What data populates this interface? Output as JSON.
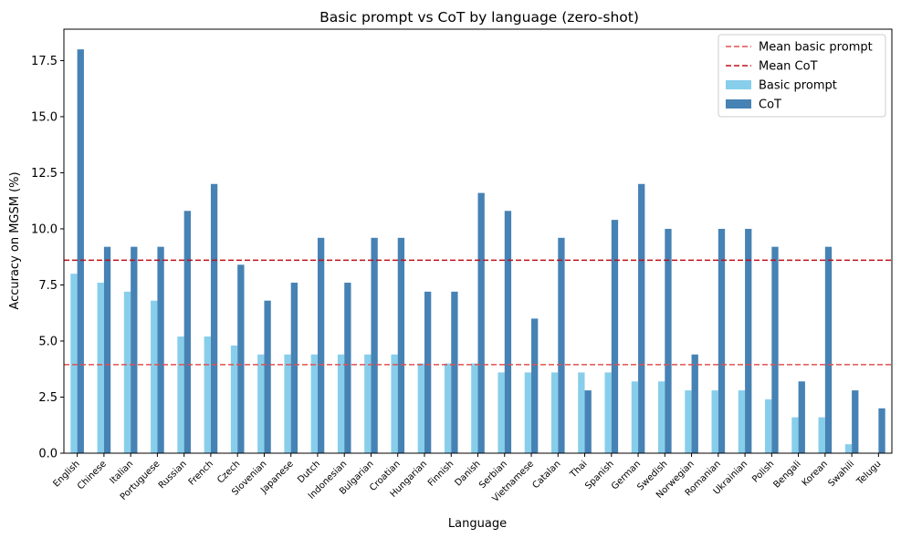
{
  "chart_data": {
    "type": "bar",
    "title": "Basic prompt vs CoT by language (zero-shot)",
    "xlabel": "Language",
    "ylabel": "Accuracy on MGSM (%)",
    "ylim": [
      0,
      18.9
    ],
    "yticks": [
      "0.0",
      "2.5",
      "5.0",
      "7.5",
      "10.0",
      "12.5",
      "15.0",
      "17.5"
    ],
    "ytick_values": [
      0,
      2.5,
      5.0,
      7.5,
      10.0,
      12.5,
      15.0,
      17.5
    ],
    "grid": false,
    "legend_position": "top-right",
    "categories": [
      "English",
      "Chinese",
      "Italian",
      "Portuguese",
      "Russian",
      "French",
      "Czech",
      "Slovenian",
      "Japanese",
      "Dutch",
      "Indonesian",
      "Bulgarian",
      "Croatian",
      "Hungarian",
      "Finnish",
      "Danish",
      "Serbian",
      "Vietnamese",
      "Catalan",
      "Thai",
      "Spanish",
      "German",
      "Swedish",
      "Norwegian",
      "Romanian",
      "Ukrainian",
      "Polish",
      "Bengali",
      "Korean",
      "Swahili",
      "Telugu"
    ],
    "series": [
      {
        "name": "Basic prompt",
        "color": "#87ceeb",
        "values": [
          8.0,
          7.6,
          7.2,
          6.8,
          5.2,
          5.2,
          4.8,
          4.4,
          4.4,
          4.4,
          4.4,
          4.4,
          4.4,
          4.0,
          4.0,
          4.0,
          3.6,
          3.6,
          3.6,
          3.6,
          3.6,
          3.2,
          3.2,
          2.8,
          2.8,
          2.8,
          2.4,
          1.6,
          1.6,
          0.4,
          0.0
        ]
      },
      {
        "name": "CoT",
        "color": "#4682b4",
        "values": [
          18.0,
          9.2,
          9.2,
          9.2,
          10.8,
          12.0,
          8.4,
          6.8,
          7.6,
          9.6,
          7.6,
          9.6,
          9.6,
          7.2,
          7.2,
          11.6,
          10.8,
          6.0,
          9.6,
          2.8,
          10.4,
          12.0,
          10.0,
          4.4,
          10.0,
          10.0,
          9.2,
          3.2,
          9.2,
          2.8,
          2.0
        ]
      }
    ],
    "reference_lines": [
      {
        "name": "Mean basic prompt",
        "value": 3.95,
        "color": "#e05050",
        "style": "dashed"
      },
      {
        "name": "Mean CoT",
        "value": 8.6,
        "color": "#c0101a",
        "style": "dashed"
      }
    ],
    "legend": [
      "Mean basic prompt",
      "Mean CoT",
      "Basic prompt",
      "CoT"
    ]
  }
}
